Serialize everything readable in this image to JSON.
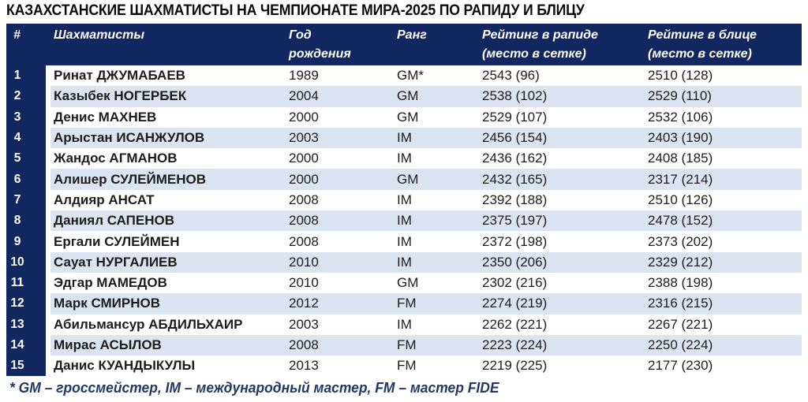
{
  "title": "КАЗАХСТАНСКИЕ ШАХМАТИСТЫ НА ЧЕМПИОНАТЕ МИРА-2025 ПО РАПИДУ И БЛИЦУ",
  "header": {
    "num": "#",
    "name": "Шахматисты",
    "year_line1": "Год",
    "year_line2": "рождения",
    "rank": "Ранг",
    "rapid_line1": "Рейтинг в рапиде",
    "rapid_line2": "(место в сетке)",
    "blitz_line1": "Рейтинг в блице",
    "blitz_line2": "(место в сетке)"
  },
  "chart_data": {
    "type": "table",
    "title": "КАЗАХСТАНСКИЕ ШАХМАТИСТЫ НА ЧЕМПИОНАТЕ МИРА-2025 ПО РАПИДУ И БЛИЦУ",
    "columns": [
      "#",
      "Шахматисты",
      "Год рождения",
      "Ранг",
      "Рейтинг в рапиде (место в сетке)",
      "Рейтинг в блице (место в сетке)"
    ],
    "rows": [
      [
        "1",
        "Ринат ДЖУМАБАЕВ",
        "1989",
        "GM*",
        "2543 (96)",
        "2510 (128)"
      ],
      [
        "2",
        "Казыбек НОГЕРБЕК",
        "2004",
        "GM",
        "2538 (102)",
        "2529 (110)"
      ],
      [
        "3",
        "Денис МАХНЕВ",
        "2000",
        "GM",
        "2529 (107)",
        "2532 (106)"
      ],
      [
        "4",
        "Арыстан ИСАНЖУЛОВ",
        "2003",
        "IM",
        "2456 (154)",
        "2403 (190)"
      ],
      [
        "5",
        "Жандос АГМАНОВ",
        "2000",
        "IM",
        "2436 (162)",
        "2408 (185)"
      ],
      [
        "6",
        "Алишер СУЛЕЙМЕНОВ",
        "2000",
        "GM",
        "2432 (165)",
        "2317 (214)"
      ],
      [
        "7",
        "Алдияр АНСАТ",
        "2008",
        "IM",
        "2392 (188)",
        "2510 (126)"
      ],
      [
        "8",
        "Даниял САПЕНОВ",
        "2008",
        "IM",
        "2375 (197)",
        "2478 (152)"
      ],
      [
        "9",
        "Ергали СУЛЕЙМЕН",
        "2008",
        "IM",
        "2372 (198)",
        "2373 (202)"
      ],
      [
        "10",
        "Сауат НУРГАЛИЕВ",
        "2010",
        "IM",
        "2350 (206)",
        "2329 (212)"
      ],
      [
        "11",
        "Эдгар МАМЕДОВ",
        "2010",
        "GM",
        "2302 (216)",
        "2388 (198)"
      ],
      [
        "12",
        "Марк СМИРНОВ",
        "2012",
        "FM",
        "2274 (219)",
        "2316 (215)"
      ],
      [
        "13",
        "Абильмансур АБДИЛЬХАИР",
        "2003",
        "IM",
        "2262 (221)",
        "2267 (221)"
      ],
      [
        "14",
        "Мирас АСЫЛОВ",
        "2008",
        "FM",
        "2223 (224)",
        "2250 (224)"
      ],
      [
        "15",
        "Данис КУАНДЫКУЛЫ",
        "2013",
        "FM",
        "2219 (225)",
        "2177 (230)"
      ]
    ]
  },
  "footnote": "* GM – гроссмейстер, IM – международный мастер, FM – мастер FIDE",
  "colors": {
    "header_bg": "#12265f",
    "row_stripe": "#dbe5f1",
    "row_plain": "#ffffff",
    "header_text": "#ffffff",
    "body_text": "#1c1c1c",
    "footnote_text": "#1f3864",
    "title_text": "#0b0b0b"
  }
}
